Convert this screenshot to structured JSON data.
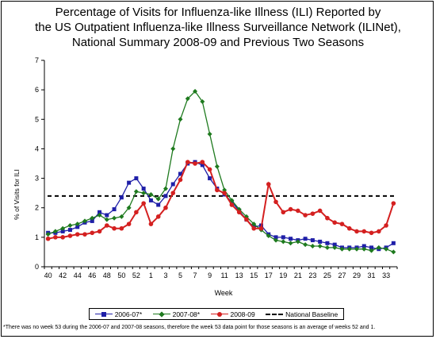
{
  "title_lines": [
    "Percentage of Visits for Influenza-like Illness (ILI) Reported by",
    "the US Outpatient Influenza-like Illness Surveillance Network (ILINet),",
    "National Summary 2008-09 and Previous Two Seasons"
  ],
  "footnote": "*There was no week 53 during the 2006-07 and 2007-08 seasons, therefore the week 53 data point for those seasons is an average of weeks 52 and 1.",
  "chart_data": {
    "type": "line",
    "title": "Percentage of Visits for Influenza-like Illness (ILI) Reported by the US Outpatient Influenza-like Illness Surveillance Network (ILINet), National Summary 2008-09 and Previous Two Seasons",
    "xlabel": "Week",
    "ylabel": "% of Visits for ILI",
    "ylim": [
      0,
      7
    ],
    "yticks": [
      0,
      1,
      2,
      3,
      4,
      5,
      6,
      7
    ],
    "grid": false,
    "legend_position": "bottom",
    "x": [
      40,
      41,
      42,
      43,
      44,
      45,
      46,
      47,
      48,
      49,
      50,
      51,
      52,
      53,
      1,
      2,
      3,
      4,
      5,
      6,
      7,
      8,
      9,
      10,
      11,
      12,
      13,
      14,
      15,
      16,
      17,
      18,
      19,
      20,
      21,
      22,
      23,
      24,
      25,
      26,
      27,
      28,
      29,
      30,
      31,
      32,
      33,
      34
    ],
    "xtick_labels": [
      "40",
      "42",
      "44",
      "46",
      "48",
      "50",
      "52",
      "1",
      "3",
      "5",
      "7",
      "9",
      "11",
      "13",
      "15",
      "17",
      "19",
      "21",
      "23",
      "25",
      "27",
      "29",
      "31",
      "33"
    ],
    "series": [
      {
        "name": "2006-07*",
        "color": "#1f1fa8",
        "marker": "square",
        "values": [
          1.15,
          1.15,
          1.2,
          1.25,
          1.35,
          1.5,
          1.55,
          1.85,
          1.75,
          1.95,
          2.35,
          2.85,
          3.0,
          2.65,
          2.25,
          2.1,
          2.4,
          2.8,
          3.15,
          3.5,
          3.55,
          3.45,
          3.0,
          2.65,
          2.45,
          2.2,
          1.9,
          1.6,
          1.35,
          1.4,
          1.1,
          1.0,
          1.0,
          0.95,
          0.9,
          0.95,
          0.9,
          0.85,
          0.8,
          0.75,
          0.65,
          0.65,
          0.65,
          0.7,
          0.65,
          0.6,
          0.65,
          0.8
        ]
      },
      {
        "name": "2007-08*",
        "color": "#1e7a1e",
        "marker": "diamond",
        "values": [
          1.1,
          1.2,
          1.3,
          1.4,
          1.45,
          1.55,
          1.65,
          1.75,
          1.6,
          1.65,
          1.7,
          2.0,
          2.55,
          2.5,
          2.45,
          2.3,
          2.65,
          4.0,
          5.0,
          5.7,
          5.95,
          5.6,
          4.5,
          3.4,
          2.6,
          2.25,
          1.95,
          1.7,
          1.45,
          1.25,
          1.05,
          0.9,
          0.85,
          0.8,
          0.85,
          0.75,
          0.7,
          0.7,
          0.65,
          0.65,
          0.6,
          0.6,
          0.6,
          0.6,
          0.55,
          0.65,
          0.6,
          0.5
        ]
      },
      {
        "name": "2008-09",
        "color": "#d42020",
        "marker": "circle",
        "values": [
          0.95,
          1.0,
          1.0,
          1.05,
          1.1,
          1.1,
          1.15,
          1.2,
          1.4,
          1.3,
          1.3,
          1.45,
          1.85,
          2.15,
          1.45,
          1.7,
          2.0,
          2.5,
          2.95,
          3.55,
          3.5,
          3.55,
          3.3,
          2.6,
          2.5,
          2.1,
          1.85,
          1.6,
          1.3,
          1.3,
          2.8,
          2.2,
          1.85,
          1.95,
          1.9,
          1.75,
          1.8,
          1.9,
          1.65,
          1.5,
          1.45,
          1.3,
          1.2,
          1.2,
          1.15,
          1.2,
          1.4,
          2.15
        ]
      }
    ],
    "baseline": {
      "name": "National Baseline",
      "value": 2.4,
      "color": "#000000",
      "style": "dashed"
    }
  }
}
